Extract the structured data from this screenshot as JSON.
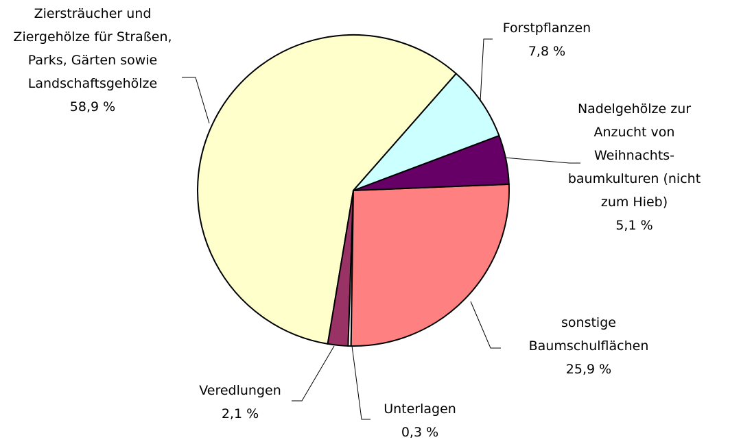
{
  "chart_data": {
    "type": "pie",
    "categories": [
      "Forstpflanzen",
      "Nadelgehölze zur Anzucht von Weihnachts-baumkulturen (nicht zum Hieb)",
      "sonstige Baumschulflächen",
      "Unterlagen",
      "Veredlungen",
      "Ziersträucher und Ziergehölze für Straßen, Parks, Gärten sowie Landschaftsgehölze"
    ],
    "values": [
      7.8,
      5.1,
      25.9,
      0.3,
      2.1,
      58.9
    ],
    "value_labels": [
      "7,8 %",
      "5,1 %",
      "25,9 %",
      "0,3 %",
      "2,1 %",
      "58,9 %"
    ],
    "colors": [
      "#ccffff",
      "#660066",
      "#ff8080",
      "#ffffff",
      "#993366",
      "#ffffcc"
    ]
  }
}
